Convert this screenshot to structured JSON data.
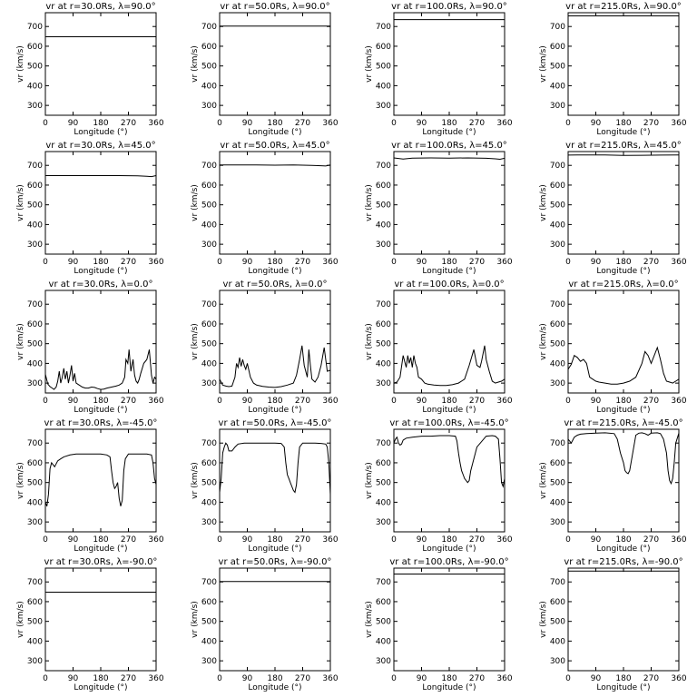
{
  "chart_data": [
    {
      "type": "line",
      "title": "vr at r=30.0Rs, λ=90.0°",
      "xlabel": "Longitude (°)",
      "ylabel": "vr (km/s)",
      "xlim": [
        0,
        360
      ],
      "ylim": [
        250,
        770
      ],
      "xticks": [
        0,
        90,
        180,
        270,
        360
      ],
      "yticks": [
        300,
        400,
        500,
        600,
        700
      ],
      "x": [
        0,
        360
      ],
      "y": [
        648,
        648
      ]
    },
    {
      "type": "line",
      "title": "vr at r=50.0Rs, λ=90.0°",
      "xlabel": "Longitude (°)",
      "ylabel": "vr (km/s)",
      "xlim": [
        0,
        360
      ],
      "ylim": [
        250,
        770
      ],
      "xticks": [
        0,
        90,
        180,
        270,
        360
      ],
      "yticks": [
        300,
        400,
        500,
        600,
        700
      ],
      "x": [
        0,
        360
      ],
      "y": [
        702,
        702
      ]
    },
    {
      "type": "line",
      "title": "vr at r=100.0Rs, λ=90.0°",
      "xlabel": "Longitude (°)",
      "ylabel": "vr (km/s)",
      "xlim": [
        0,
        360
      ],
      "ylim": [
        250,
        770
      ],
      "xticks": [
        0,
        90,
        180,
        270,
        360
      ],
      "yticks": [
        300,
        400,
        500,
        600,
        700
      ],
      "x": [
        0,
        360
      ],
      "y": [
        735,
        735
      ]
    },
    {
      "type": "line",
      "title": "vr at r=215.0Rs, λ=90.0°",
      "xlabel": "Longitude (°)",
      "ylabel": "vr (km/s)",
      "xlim": [
        0,
        360
      ],
      "ylim": [
        250,
        770
      ],
      "xticks": [
        0,
        90,
        180,
        270,
        360
      ],
      "yticks": [
        300,
        400,
        500,
        600,
        700
      ],
      "x": [
        0,
        360
      ],
      "y": [
        754,
        754
      ]
    },
    {
      "type": "line",
      "title": "vr at r=30.0Rs, λ=45.0°",
      "xlabel": "Longitude (°)",
      "ylabel": "vr (km/s)",
      "xlim": [
        0,
        360
      ],
      "ylim": [
        250,
        770
      ],
      "xticks": [
        0,
        90,
        180,
        270,
        360
      ],
      "yticks": [
        300,
        400,
        500,
        600,
        700
      ],
      "x": [
        0,
        60,
        120,
        180,
        240,
        300,
        330,
        345,
        360
      ],
      "y": [
        648,
        648,
        648,
        648,
        648,
        647,
        645,
        643,
        648
      ]
    },
    {
      "type": "line",
      "title": "vr at r=50.0Rs, λ=45.0°",
      "xlabel": "Longitude (°)",
      "ylabel": "vr (km/s)",
      "xlim": [
        0,
        360
      ],
      "ylim": [
        250,
        770
      ],
      "xticks": [
        0,
        90,
        180,
        270,
        360
      ],
      "yticks": [
        300,
        400,
        500,
        600,
        700
      ],
      "x": [
        0,
        60,
        120,
        180,
        240,
        300,
        330,
        345,
        360
      ],
      "y": [
        702,
        702,
        702,
        701,
        702,
        700,
        698,
        697,
        702
      ]
    },
    {
      "type": "line",
      "title": "vr at r=100.0Rs, λ=45.0°",
      "xlabel": "Longitude (°)",
      "ylabel": "vr (km/s)",
      "xlim": [
        0,
        360
      ],
      "ylim": [
        250,
        770
      ],
      "xticks": [
        0,
        90,
        180,
        270,
        360
      ],
      "yticks": [
        300,
        400,
        500,
        600,
        700
      ],
      "x": [
        0,
        30,
        60,
        120,
        180,
        240,
        300,
        330,
        345,
        360
      ],
      "y": [
        738,
        732,
        737,
        738,
        737,
        738,
        736,
        733,
        731,
        736
      ]
    },
    {
      "type": "line",
      "title": "vr at r=215.0Rs, λ=45.0°",
      "xlabel": "Longitude (°)",
      "ylabel": "vr (km/s)",
      "xlim": [
        0,
        360
      ],
      "ylim": [
        250,
        770
      ],
      "xticks": [
        0,
        90,
        180,
        270,
        360
      ],
      "yticks": [
        300,
        400,
        500,
        600,
        700
      ],
      "x": [
        0,
        60,
        120,
        180,
        240,
        300,
        360
      ],
      "y": [
        752,
        753,
        753,
        750,
        751,
        752,
        753
      ]
    },
    {
      "type": "line",
      "title": "vr at r=30.0Rs, λ=0.0°",
      "xlabel": "Longitude (°)",
      "ylabel": "vr (km/s)",
      "xlim": [
        0,
        360
      ],
      "ylim": [
        250,
        770
      ],
      "xticks": [
        0,
        90,
        180,
        270,
        360
      ],
      "yticks": [
        300,
        400,
        500,
        600,
        700
      ],
      "x": [
        0,
        8,
        15,
        22,
        28,
        35,
        40,
        45,
        50,
        55,
        60,
        65,
        70,
        75,
        80,
        85,
        90,
        95,
        100,
        110,
        120,
        130,
        140,
        150,
        160,
        170,
        180,
        190,
        200,
        215,
        230,
        240,
        250,
        258,
        262,
        268,
        272,
        278,
        285,
        290,
        295,
        300,
        305,
        310,
        320,
        330,
        338,
        345,
        350,
        355,
        360
      ],
      "y": [
        345,
        295,
        282,
        275,
        268,
        280,
        310,
        360,
        300,
        330,
        375,
        320,
        360,
        300,
        340,
        390,
        310,
        350,
        300,
        290,
        280,
        275,
        275,
        280,
        278,
        272,
        268,
        270,
        275,
        280,
        285,
        290,
        300,
        330,
        420,
        400,
        470,
        360,
        420,
        340,
        310,
        300,
        320,
        350,
        400,
        420,
        470,
        340,
        300,
        330,
        320
      ]
    },
    {
      "type": "line",
      "title": "vr at r=50.0Rs, λ=0.0°",
      "xlabel": "Longitude (°)",
      "ylabel": "vr (km/s)",
      "xlim": [
        0,
        360
      ],
      "ylim": [
        250,
        770
      ],
      "xticks": [
        0,
        90,
        180,
        270,
        360
      ],
      "yticks": [
        300,
        400,
        500,
        600,
        700
      ],
      "x": [
        0,
        10,
        20,
        30,
        40,
        50,
        55,
        60,
        65,
        70,
        75,
        80,
        85,
        90,
        100,
        110,
        120,
        140,
        160,
        180,
        200,
        220,
        240,
        250,
        260,
        268,
        275,
        285,
        290,
        295,
        300,
        310,
        320,
        330,
        340,
        350,
        360
      ],
      "y": [
        320,
        290,
        285,
        282,
        285,
        330,
        400,
        380,
        430,
        385,
        420,
        390,
        370,
        400,
        330,
        300,
        290,
        283,
        280,
        278,
        282,
        290,
        300,
        340,
        420,
        490,
        390,
        330,
        470,
        390,
        320,
        305,
        330,
        390,
        480,
        360,
        365
      ]
    },
    {
      "type": "line",
      "title": "vr at r=100.0Rs, λ=0.0°",
      "xlabel": "Longitude (°)",
      "ylabel": "vr (km/s)",
      "xlim": [
        0,
        360
      ],
      "ylim": [
        250,
        770
      ],
      "xticks": [
        0,
        90,
        180,
        270,
        360
      ],
      "yticks": [
        300,
        400,
        500,
        600,
        700
      ],
      "x": [
        0,
        10,
        20,
        30,
        35,
        40,
        45,
        50,
        55,
        60,
        65,
        70,
        75,
        80,
        90,
        100,
        110,
        130,
        150,
        170,
        190,
        210,
        230,
        245,
        260,
        270,
        280,
        285,
        290,
        295,
        300,
        310,
        320,
        330,
        340,
        350,
        360
      ],
      "y": [
        300,
        305,
        330,
        440,
        410,
        380,
        440,
        400,
        430,
        380,
        440,
        400,
        380,
        330,
        320,
        300,
        295,
        290,
        288,
        288,
        292,
        300,
        320,
        390,
        470,
        390,
        380,
        410,
        450,
        490,
        420,
        360,
        310,
        300,
        305,
        310,
        320
      ]
    },
    {
      "type": "line",
      "title": "vr at r=215.0Rs, λ=0.0°",
      "xlabel": "Longitude (°)",
      "ylabel": "vr (km/s)",
      "xlim": [
        0,
        360
      ],
      "ylim": [
        250,
        770
      ],
      "xticks": [
        0,
        90,
        180,
        270,
        360
      ],
      "yticks": [
        300,
        400,
        500,
        600,
        700
      ],
      "x": [
        0,
        10,
        20,
        30,
        40,
        50,
        60,
        70,
        80,
        90,
        100,
        120,
        140,
        160,
        180,
        200,
        220,
        240,
        250,
        260,
        270,
        280,
        290,
        300,
        310,
        320,
        330,
        340,
        350,
        360
      ],
      "y": [
        370,
        395,
        440,
        430,
        410,
        420,
        400,
        330,
        320,
        310,
        305,
        300,
        295,
        295,
        300,
        310,
        330,
        400,
        460,
        440,
        400,
        440,
        480,
        420,
        350,
        310,
        305,
        300,
        310,
        320
      ]
    },
    {
      "type": "line",
      "title": "vr at r=30.0Rs, λ=-45.0°",
      "xlabel": "Longitude (°)",
      "ylabel": "vr (km/s)",
      "xlim": [
        0,
        360
      ],
      "ylim": [
        250,
        770
      ],
      "xticks": [
        0,
        90,
        180,
        270,
        360
      ],
      "yticks": [
        300,
        400,
        500,
        600,
        700
      ],
      "x": [
        0,
        5,
        10,
        15,
        20,
        25,
        30,
        40,
        50,
        60,
        80,
        100,
        120,
        150,
        180,
        200,
        210,
        215,
        220,
        225,
        230,
        235,
        240,
        245,
        250,
        255,
        260,
        270,
        290,
        310,
        330,
        345,
        350,
        355,
        360
      ],
      "y": [
        400,
        380,
        440,
        570,
        600,
        590,
        580,
        610,
        620,
        630,
        640,
        645,
        645,
        645,
        645,
        640,
        630,
        560,
        500,
        470,
        480,
        500,
        420,
        380,
        410,
        560,
        620,
        645,
        645,
        645,
        645,
        640,
        600,
        520,
        490
      ]
    },
    {
      "type": "line",
      "title": "vr at r=50.0Rs, λ=-45.0°",
      "xlabel": "Longitude (°)",
      "ylabel": "vr (km/s)",
      "xlim": [
        0,
        360
      ],
      "ylim": [
        250,
        770
      ],
      "xticks": [
        0,
        90,
        180,
        270,
        360
      ],
      "yticks": [
        300,
        400,
        500,
        600,
        700
      ],
      "x": [
        0,
        5,
        10,
        15,
        20,
        25,
        30,
        40,
        50,
        60,
        80,
        100,
        120,
        140,
        180,
        200,
        210,
        215,
        220,
        225,
        230,
        240,
        245,
        250,
        255,
        260,
        270,
        290,
        310,
        330,
        345,
        350,
        355,
        360
      ],
      "y": [
        450,
        520,
        650,
        680,
        700,
        690,
        660,
        660,
        680,
        695,
        700,
        700,
        700,
        700,
        700,
        698,
        680,
        600,
        540,
        520,
        500,
        460,
        450,
        490,
        600,
        680,
        700,
        700,
        700,
        698,
        695,
        680,
        600,
        440
      ]
    },
    {
      "type": "line",
      "title": "vr at r=100.0Rs, λ=-45.0°",
      "xlabel": "Longitude (°)",
      "ylabel": "vr (km/s)",
      "xlim": [
        0,
        360
      ],
      "ylim": [
        250,
        770
      ],
      "xticks": [
        0,
        90,
        180,
        270,
        360
      ],
      "yticks": [
        300,
        400,
        500,
        600,
        700
      ],
      "x": [
        0,
        5,
        10,
        15,
        20,
        25,
        30,
        40,
        60,
        90,
        120,
        150,
        180,
        200,
        205,
        210,
        215,
        220,
        225,
        230,
        240,
        245,
        250,
        270,
        300,
        320,
        330,
        340,
        345,
        350,
        355,
        360
      ],
      "y": [
        700,
        720,
        730,
        700,
        690,
        695,
        715,
        725,
        730,
        735,
        735,
        738,
        738,
        735,
        710,
        650,
        600,
        560,
        540,
        520,
        500,
        510,
        560,
        680,
        735,
        738,
        735,
        720,
        620,
        500,
        480,
        520
      ]
    },
    {
      "type": "line",
      "title": "vr at r=215.0Rs, λ=-45.0°",
      "xlabel": "Longitude (°)",
      "ylabel": "vr (km/s)",
      "xlim": [
        0,
        360
      ],
      "ylim": [
        250,
        770
      ],
      "xticks": [
        0,
        90,
        180,
        270,
        360
      ],
      "yticks": [
        300,
        400,
        500,
        600,
        700
      ],
      "x": [
        0,
        5,
        10,
        15,
        20,
        30,
        40,
        60,
        90,
        120,
        150,
        160,
        170,
        180,
        185,
        190,
        195,
        200,
        210,
        220,
        230,
        240,
        250,
        260,
        270,
        290,
        300,
        310,
        320,
        325,
        330,
        335,
        340,
        345,
        350,
        360
      ],
      "y": [
        720,
        710,
        700,
        715,
        730,
        740,
        745,
        748,
        750,
        752,
        748,
        720,
        650,
        600,
        560,
        550,
        545,
        560,
        650,
        740,
        750,
        752,
        748,
        740,
        750,
        752,
        748,
        720,
        650,
        560,
        510,
        495,
        520,
        600,
        700,
        750
      ]
    },
    {
      "type": "line",
      "title": "vr at r=30.0Rs, λ=-90.0°",
      "xlabel": "Longitude (°)",
      "ylabel": "vr (km/s)",
      "xlim": [
        0,
        360
      ],
      "ylim": [
        250,
        770
      ],
      "xticks": [
        0,
        90,
        180,
        270,
        360
      ],
      "yticks": [
        300,
        400,
        500,
        600,
        700
      ],
      "x": [
        0,
        360
      ],
      "y": [
        648,
        648
      ]
    },
    {
      "type": "line",
      "title": "vr at r=50.0Rs, λ=-90.0°",
      "xlabel": "Longitude (°)",
      "ylabel": "vr (km/s)",
      "xlim": [
        0,
        360
      ],
      "ylim": [
        250,
        770
      ],
      "xticks": [
        0,
        90,
        180,
        270,
        360
      ],
      "yticks": [
        300,
        400,
        500,
        600,
        700
      ],
      "x": [
        0,
        360
      ],
      "y": [
        702,
        702
      ]
    },
    {
      "type": "line",
      "title": "vr at r=100.0Rs, λ=-90.0°",
      "xlabel": "Longitude (°)",
      "ylabel": "vr (km/s)",
      "xlim": [
        0,
        360
      ],
      "ylim": [
        250,
        770
      ],
      "xticks": [
        0,
        90,
        180,
        270,
        360
      ],
      "yticks": [
        300,
        400,
        500,
        600,
        700
      ],
      "x": [
        0,
        360
      ],
      "y": [
        740,
        740
      ]
    },
    {
      "type": "line",
      "title": "vr at r=215.0Rs, λ=-90.0°",
      "xlabel": "Longitude (°)",
      "ylabel": "vr (km/s)",
      "xlim": [
        0,
        360
      ],
      "ylim": [
        250,
        770
      ],
      "xticks": [
        0,
        90,
        180,
        270,
        360
      ],
      "yticks": [
        300,
        400,
        500,
        600,
        700
      ],
      "x": [
        0,
        360
      ],
      "y": [
        755,
        755
      ]
    }
  ]
}
